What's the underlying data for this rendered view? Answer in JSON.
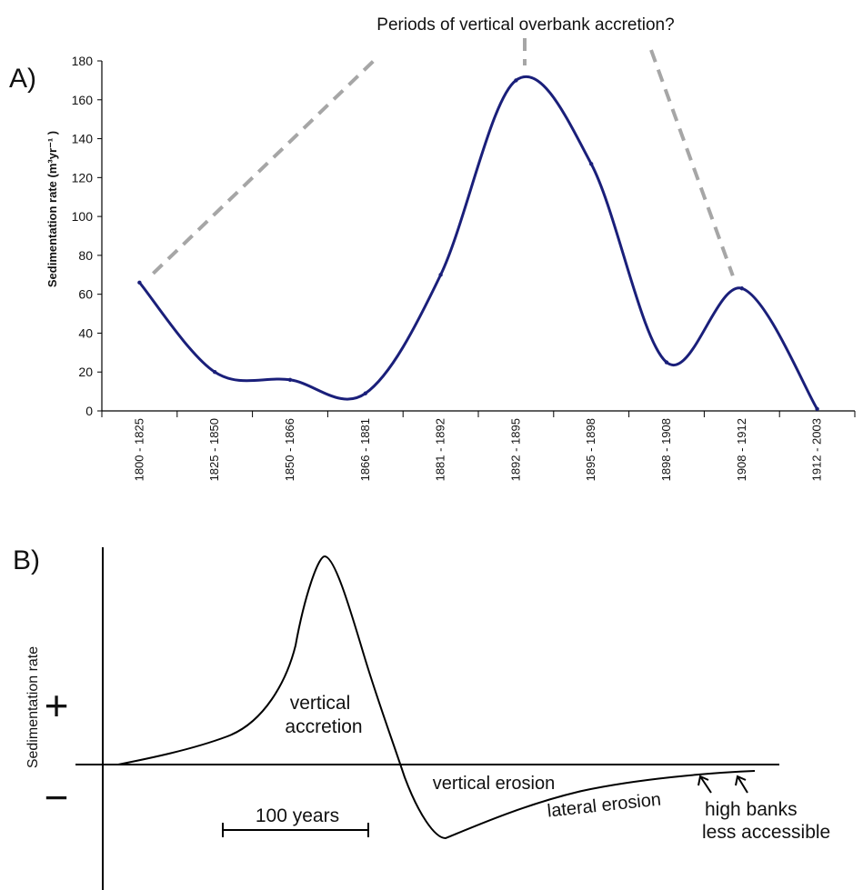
{
  "figure": {
    "panel_a_label": "A)",
    "panel_b_label": "B)",
    "top_annotation": "Periods of vertical overbank accretion?"
  },
  "chart_data": [
    {
      "type": "line",
      "panel": "A)",
      "categories": [
        "1800 - 1825",
        "1825 - 1850",
        "1850 - 1866",
        "1866 - 1881",
        "1881 - 1892",
        "1892 - 1895",
        "1895 - 1898",
        "1898 - 1908",
        "1908 - 1912",
        "1912 - 2003"
      ],
      "values": [
        66,
        20,
        16,
        9,
        70,
        170,
        127,
        25,
        63,
        1
      ],
      "title": "",
      "xlabel": "",
      "ylabel": "Sedimentation rate (m³yr⁻¹ )",
      "ylim": [
        0,
        180
      ],
      "yticks": [
        0,
        20,
        40,
        60,
        80,
        100,
        120,
        140,
        160,
        180
      ],
      "line_color": "#1a1f7a",
      "smooth": true,
      "grid": false,
      "annotation": "Periods of vertical overbank accretion?",
      "annotation_color": "#a6a6a6"
    },
    {
      "type": "line",
      "panel": "B)",
      "title": "",
      "ylabel": "Sedimentation rate",
      "axis_signs": {
        "plus": "+",
        "minus": "−"
      },
      "scale_bar_label": "100 years",
      "curve_labels": {
        "vertical_accretion_1": "vertical",
        "vertical_accretion_2": "accretion",
        "vertical_erosion": "vertical erosion",
        "lateral_erosion": "lateral erosion",
        "high_banks_1": "high banks",
        "high_banks_2": "less accessible"
      },
      "conceptual": true
    }
  ]
}
